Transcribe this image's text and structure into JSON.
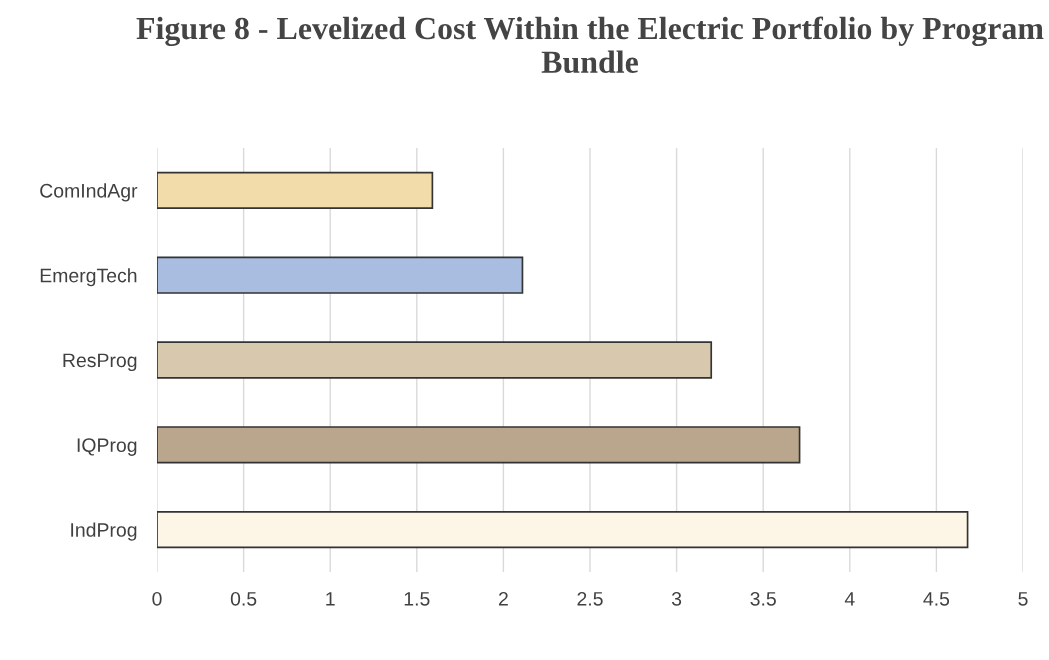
{
  "chart_data": {
    "type": "bar",
    "orientation": "horizontal",
    "title": "Figure 8 - Levelized Cost Within the Electric Portfolio by Program Bundle",
    "categories": [
      "ComIndAgr",
      "EmergTech",
      "ResProg",
      "IQProg",
      "IndProg"
    ],
    "values": [
      1.59,
      2.11,
      3.2,
      3.71,
      4.68
    ],
    "colors": [
      "#f1dcaa",
      "#a9bde0",
      "#d8c8ae",
      "#b9a68c",
      "#fdf5e6"
    ],
    "xlim": [
      0,
      5
    ],
    "xticks": [
      0,
      0.5,
      1,
      1.5,
      2,
      2.5,
      3,
      3.5,
      4,
      4.5,
      5
    ],
    "grid": "x"
  }
}
